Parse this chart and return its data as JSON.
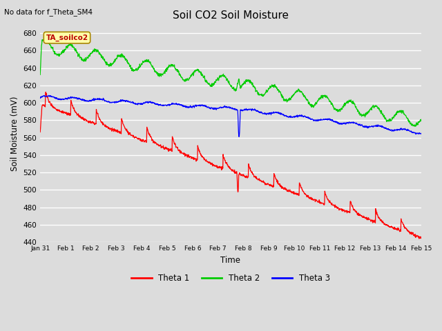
{
  "title": "Soil CO2 Soil Moisture",
  "xlabel": "Time",
  "ylabel": "Soil Moisture (mV)",
  "top_left_note": "No data for f_Theta_SM4",
  "annotation_box": "TA_soilco2",
  "ylim": [
    440,
    690
  ],
  "yticks": [
    440,
    460,
    480,
    500,
    520,
    540,
    560,
    580,
    600,
    620,
    640,
    660,
    680
  ],
  "bg_color": "#dcdcdc",
  "grid_color": "#ffffff",
  "colors": {
    "theta1": "#ff0000",
    "theta2": "#00cc00",
    "theta3": "#0000ff"
  },
  "legend_labels": [
    "Theta 1",
    "Theta 2",
    "Theta 3"
  ]
}
